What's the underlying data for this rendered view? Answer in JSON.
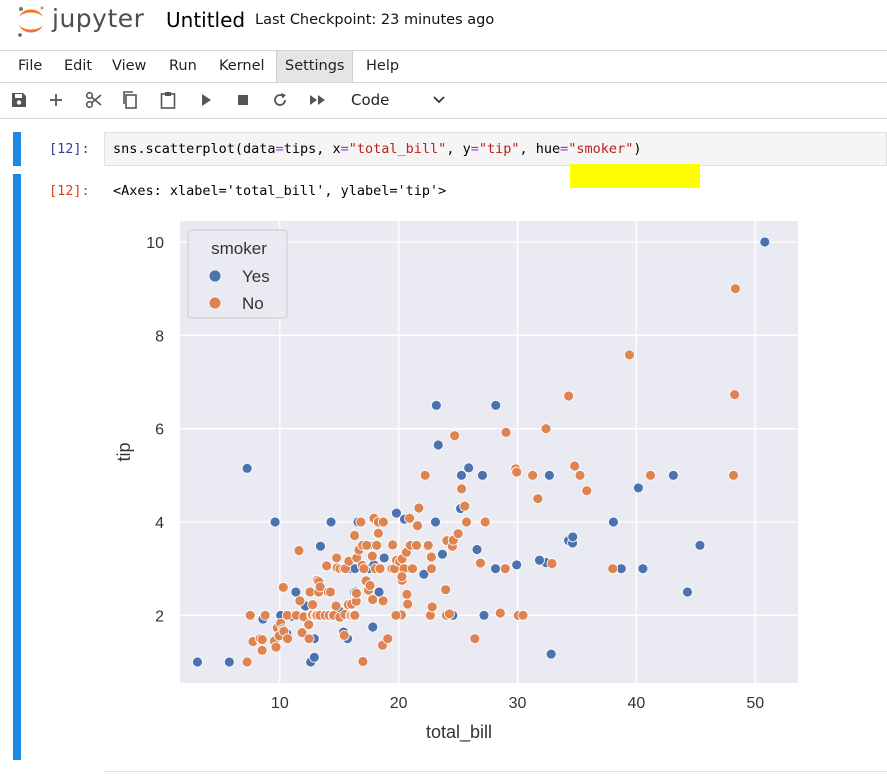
{
  "header": {
    "brand": "jupyter",
    "notebook_title": "Untitled",
    "checkpoint": "Last Checkpoint: 23 minutes ago"
  },
  "menu": [
    "File",
    "Edit",
    "View",
    "Run",
    "Kernel",
    "Settings",
    "Help"
  ],
  "menu_active": "Settings",
  "toolbar": {
    "icons": [
      "save-icon",
      "add-cell-icon",
      "cut-icon",
      "copy-icon",
      "paste-icon",
      "run-icon",
      "stop-icon",
      "restart-icon",
      "run-all-icon"
    ],
    "cell_type": "Code"
  },
  "cell": {
    "in_prompt": "[12]:",
    "out_prompt": "[12]:",
    "code": {
      "fn": "sns.scatterplot(",
      "arg1_name": "data",
      "arg1_val": "tips",
      "arg2_name": "x",
      "arg2_val": "\"total_bill\"",
      "arg3_name": "y",
      "arg3_val": "\"tip\"",
      "arg4_name": "hue",
      "arg4_val": "\"smoker\"",
      "close": ")"
    },
    "output_text": "<Axes: xlabel='total_bill', ylabel='tip'>"
  },
  "colors": {
    "accent_bar": "#1e88e5",
    "yes": "#4c72b0",
    "no": "#dd8452",
    "plot_bg": "#eaeaf2",
    "highlight": "#ffff00"
  },
  "chart_data": {
    "type": "scatter",
    "title": "",
    "xlabel": "total_bill",
    "ylabel": "tip",
    "xlim": [
      1.6,
      53.6
    ],
    "ylim": [
      0.55,
      10.45
    ],
    "xticks": [
      10,
      20,
      30,
      40,
      50
    ],
    "yticks": [
      2,
      4,
      6,
      8,
      10
    ],
    "grid": true,
    "legend_title": "smoker",
    "legend_position": "top-left",
    "series": [
      {
        "name": "Yes",
        "color": "#4c72b0",
        "points": [
          [
            3.07,
            1.0
          ],
          [
            5.75,
            1.0
          ],
          [
            7.25,
            5.15
          ],
          [
            9.6,
            4.0
          ],
          [
            8.58,
            1.92
          ],
          [
            10.07,
            2.0
          ],
          [
            10.59,
            1.61
          ],
          [
            11.35,
            2.5
          ],
          [
            12.6,
            1.0
          ],
          [
            12.9,
            1.1
          ],
          [
            13.27,
            2.5
          ],
          [
            13.42,
            3.48
          ],
          [
            13.0,
            2.0
          ],
          [
            12.16,
            2.2
          ],
          [
            12.9,
            1.5
          ],
          [
            13.81,
            2.0
          ],
          [
            14.31,
            4.0
          ],
          [
            15.36,
            1.64
          ],
          [
            15.69,
            1.5
          ],
          [
            15.48,
            2.02
          ],
          [
            16.0,
            2.0
          ],
          [
            16.31,
            2.0
          ],
          [
            16.27,
            2.5
          ],
          [
            16.4,
            2.5
          ],
          [
            16.58,
            4.0
          ],
          [
            16.66,
            3.4
          ],
          [
            15.98,
            3.0
          ],
          [
            17.47,
            3.5
          ],
          [
            17.29,
            3.0
          ],
          [
            17.82,
            1.75
          ],
          [
            18.29,
            3.76
          ],
          [
            17.51,
            3.0
          ],
          [
            18.24,
            3.5
          ],
          [
            18.78,
            3.23
          ],
          [
            19.49,
            3.51
          ],
          [
            19.44,
            3.0
          ],
          [
            19.81,
            4.19
          ],
          [
            20.08,
            3.15
          ],
          [
            20.49,
            4.06
          ],
          [
            20.27,
            2.83
          ],
          [
            20.9,
            3.5
          ],
          [
            21.01,
            3.0
          ],
          [
            22.12,
            2.88
          ],
          [
            22.82,
            2.18
          ],
          [
            22.76,
            3.0
          ],
          [
            23.1,
            4.0
          ],
          [
            23.33,
            5.65
          ],
          [
            22.42,
            3.48
          ],
          [
            23.17,
            6.5
          ],
          [
            24.08,
            2.0
          ],
          [
            24.55,
            2.0
          ],
          [
            25.21,
            4.29
          ],
          [
            25.56,
            4.34
          ],
          [
            25.28,
            5.0
          ],
          [
            25.89,
            5.16
          ],
          [
            26.59,
            3.41
          ],
          [
            27.05,
            5.0
          ],
          [
            27.18,
            2.0
          ],
          [
            26.86,
            3.14
          ],
          [
            28.17,
            6.5
          ],
          [
            28.15,
            3.0
          ],
          [
            28.97,
            3.0
          ],
          [
            29.93,
            3.08
          ],
          [
            30.14,
            2.0
          ],
          [
            30.4,
            2.0
          ],
          [
            32.4,
            3.13
          ],
          [
            32.68,
            5.0
          ],
          [
            32.83,
            1.17
          ],
          [
            31.85,
            3.18
          ],
          [
            34.3,
            3.6
          ],
          [
            34.63,
            3.55
          ],
          [
            34.65,
            3.68
          ],
          [
            38.07,
            4.0
          ],
          [
            38.73,
            3.0
          ],
          [
            40.17,
            4.73
          ],
          [
            40.55,
            3.0
          ],
          [
            43.11,
            5.0
          ],
          [
            44.3,
            2.5
          ],
          [
            45.35,
            3.5
          ],
          [
            50.81,
            10.0
          ],
          [
            9.55,
            1.45
          ],
          [
            15.01,
            2.09
          ],
          [
            18.35,
            2.5
          ],
          [
            17.92,
            3.08
          ],
          [
            23.68,
            3.31
          ],
          [
            13.51,
            2.0
          ],
          [
            11.02,
            1.98
          ],
          [
            12.54,
            2.5
          ],
          [
            16.32,
            3.0
          ],
          [
            19.77,
            2.0
          ]
        ]
      },
      {
        "name": "No",
        "color": "#dd8452",
        "points": [
          [
            7.25,
            1.0
          ],
          [
            7.51,
            2.0
          ],
          [
            7.74,
            1.44
          ],
          [
            8.35,
            1.5
          ],
          [
            8.51,
            1.25
          ],
          [
            8.52,
            1.48
          ],
          [
            8.77,
            2.0
          ],
          [
            9.55,
            1.45
          ],
          [
            9.68,
            1.32
          ],
          [
            9.78,
            1.73
          ],
          [
            9.94,
            1.56
          ],
          [
            10.07,
            1.83
          ],
          [
            10.27,
            1.71
          ],
          [
            10.29,
            2.6
          ],
          [
            10.33,
            1.67
          ],
          [
            10.34,
            1.66
          ],
          [
            10.63,
            2.0
          ],
          [
            10.65,
            1.5
          ],
          [
            11.38,
            2.0
          ],
          [
            11.61,
            3.39
          ],
          [
            11.69,
            2.31
          ],
          [
            11.87,
            1.63
          ],
          [
            12.02,
            1.97
          ],
          [
            12.43,
            1.8
          ],
          [
            12.46,
            1.5
          ],
          [
            12.54,
            2.5
          ],
          [
            12.69,
            2.0
          ],
          [
            12.74,
            2.01
          ],
          [
            12.76,
            2.23
          ],
          [
            13.0,
            2.0
          ],
          [
            13.03,
            2.0
          ],
          [
            13.13,
            2.0
          ],
          [
            13.16,
            2.75
          ],
          [
            13.27,
            2.5
          ],
          [
            13.28,
            2.72
          ],
          [
            13.37,
            2.0
          ],
          [
            13.39,
            2.61
          ],
          [
            13.81,
            2.0
          ],
          [
            13.94,
            3.06
          ],
          [
            14.07,
            2.5
          ],
          [
            14.15,
            2.0
          ],
          [
            14.26,
            2.5
          ],
          [
            14.48,
            2.0
          ],
          [
            14.52,
            2.0
          ],
          [
            14.73,
            2.2
          ],
          [
            14.78,
            3.23
          ],
          [
            14.83,
            3.02
          ],
          [
            15.04,
            1.96
          ],
          [
            15.06,
            3.0
          ],
          [
            15.38,
            3.0
          ],
          [
            15.42,
            1.57
          ],
          [
            15.48,
            2.02
          ],
          [
            15.53,
            3.0
          ],
          [
            15.77,
            2.23
          ],
          [
            15.81,
            3.16
          ],
          [
            15.95,
            2.0
          ],
          [
            16.0,
            2.0
          ],
          [
            16.04,
            2.24
          ],
          [
            16.21,
            2.0
          ],
          [
            16.29,
            3.71
          ],
          [
            16.31,
            2.0
          ],
          [
            16.43,
            2.3
          ],
          [
            16.45,
            2.47
          ],
          [
            16.47,
            3.23
          ],
          [
            16.66,
            3.4
          ],
          [
            16.82,
            4.0
          ],
          [
            16.93,
            3.07
          ],
          [
            16.97,
            3.5
          ],
          [
            16.99,
            1.01
          ],
          [
            17.07,
            3.0
          ],
          [
            17.26,
            2.74
          ],
          [
            17.31,
            3.5
          ],
          [
            17.46,
            2.54
          ],
          [
            17.59,
            2.64
          ],
          [
            17.78,
            3.27
          ],
          [
            17.81,
            2.34
          ],
          [
            17.92,
            4.08
          ],
          [
            18.04,
            3.0
          ],
          [
            18.15,
            3.5
          ],
          [
            18.24,
            3.76
          ],
          [
            18.28,
            4.0
          ],
          [
            18.29,
            3.76
          ],
          [
            18.43,
            3.0
          ],
          [
            18.64,
            1.36
          ],
          [
            18.69,
            2.31
          ],
          [
            18.71,
            4.0
          ],
          [
            19.08,
            1.5
          ],
          [
            19.44,
            3.0
          ],
          [
            19.49,
            3.51
          ],
          [
            19.65,
            3.0
          ],
          [
            19.82,
            3.18
          ],
          [
            20.08,
            3.15
          ],
          [
            20.23,
            2.01
          ],
          [
            20.29,
            3.21
          ],
          [
            20.45,
            3.0
          ],
          [
            20.65,
            3.35
          ],
          [
            20.69,
            2.45
          ],
          [
            20.76,
            2.24
          ],
          [
            20.92,
            4.08
          ],
          [
            21.01,
            3.5
          ],
          [
            21.16,
            3.0
          ],
          [
            21.58,
            3.92
          ],
          [
            21.7,
            4.3
          ],
          [
            22.23,
            5.0
          ],
          [
            22.42,
            3.48
          ],
          [
            22.49,
            3.5
          ],
          [
            22.67,
            2.0
          ],
          [
            22.75,
            3.25
          ],
          [
            22.76,
            3.0
          ],
          [
            22.82,
            2.18
          ],
          [
            23.95,
            2.55
          ],
          [
            24.01,
            2.0
          ],
          [
            24.06,
            3.6
          ],
          [
            24.27,
            2.03
          ],
          [
            24.52,
            3.48
          ],
          [
            24.59,
            3.61
          ],
          [
            24.71,
            5.85
          ],
          [
            25.0,
            3.75
          ],
          [
            25.29,
            4.71
          ],
          [
            25.56,
            4.34
          ],
          [
            25.71,
            4.0
          ],
          [
            26.41,
            1.5
          ],
          [
            26.88,
            3.12
          ],
          [
            27.2,
            4.0
          ],
          [
            27.28,
            4.0
          ],
          [
            28.55,
            2.05
          ],
          [
            28.97,
            3.0
          ],
          [
            29.03,
            5.92
          ],
          [
            29.85,
            5.14
          ],
          [
            29.93,
            5.07
          ],
          [
            30.06,
            2.0
          ],
          [
            30.46,
            2.0
          ],
          [
            31.27,
            5.0
          ],
          [
            31.71,
            4.5
          ],
          [
            32.4,
            6.0
          ],
          [
            32.9,
            3.11
          ],
          [
            34.3,
            6.7
          ],
          [
            34.81,
            5.2
          ],
          [
            35.26,
            5.0
          ],
          [
            35.83,
            4.67
          ],
          [
            38.01,
            3.0
          ],
          [
            39.42,
            7.58
          ],
          [
            41.19,
            5.0
          ],
          [
            48.17,
            5.0
          ],
          [
            48.27,
            6.73
          ],
          [
            48.33,
            9.0
          ],
          [
            20.29,
            2.75
          ],
          [
            21.5,
            3.5
          ],
          [
            19.77,
            2.0
          ],
          [
            20.27,
            2.83
          ]
        ]
      }
    ]
  }
}
